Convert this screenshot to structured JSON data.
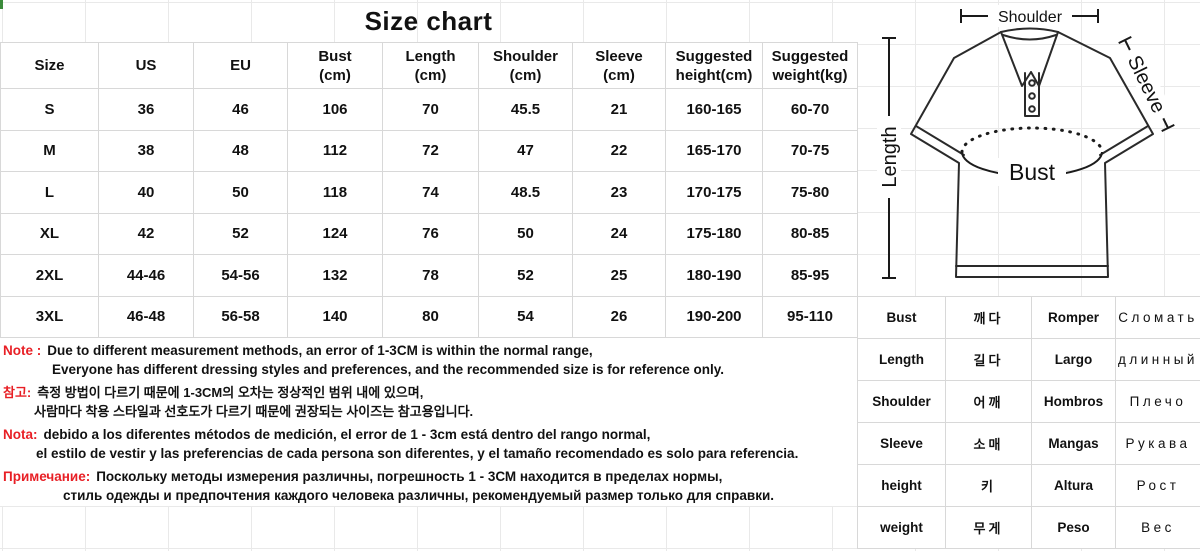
{
  "title": "Size chart",
  "corner_mark_color": "#3a8a3a",
  "size_table": {
    "headers": [
      {
        "label": "Size",
        "unit": ""
      },
      {
        "label": "US",
        "unit": ""
      },
      {
        "label": "EU",
        "unit": ""
      },
      {
        "label": "Bust",
        "unit": "(cm)"
      },
      {
        "label": "Length",
        "unit": "(cm)"
      },
      {
        "label": "Shoulder",
        "unit": "(cm)"
      },
      {
        "label": "Sleeve",
        "unit": "(cm)"
      },
      {
        "label": "Suggested",
        "unit": "height(cm)"
      },
      {
        "label": "Suggested",
        "unit": "weight(kg)"
      }
    ],
    "rows": [
      [
        "S",
        "36",
        "46",
        "106",
        "70",
        "45.5",
        "21",
        "160-165",
        "60-70"
      ],
      [
        "M",
        "38",
        "48",
        "112",
        "72",
        "47",
        "22",
        "165-170",
        "70-75"
      ],
      [
        "L",
        "40",
        "50",
        "118",
        "74",
        "48.5",
        "23",
        "170-175",
        "75-80"
      ],
      [
        "XL",
        "42",
        "52",
        "124",
        "76",
        "50",
        "24",
        "175-180",
        "80-85"
      ],
      [
        "2XL",
        "44-46",
        "54-56",
        "132",
        "78",
        "52",
        "25",
        "180-190",
        "85-95"
      ],
      [
        "3XL",
        "46-48",
        "56-58",
        "140",
        "80",
        "54",
        "26",
        "190-200",
        "95-110"
      ]
    ]
  },
  "notes": [
    {
      "label": "Note :",
      "line1": "Due to different measurement methods, an error of 1-3CM is within the normal range,",
      "line2": "Everyone has different dressing styles and  preferences, and the recommended size is for reference only."
    },
    {
      "label": "참고:",
      "line1": "측정 방법이 다르기 때문에 1-3CM의 오차는 정상적인 범위 내에 있으며,",
      "line2": "사람마다 착용 스타일과 선호도가 다르기 때문에 권장되는 사이즈는 참고용입니다."
    },
    {
      "label": "Nota:",
      "line1": "debido a los diferentes métodos de medición, el error de 1 - 3cm está dentro del rango normal,",
      "line2": "el estilo de vestir y las preferencias de cada persona son diferentes, y el tamaño recomendado es solo para referencia."
    },
    {
      "label": "Примечание:",
      "line1": "Поскольку методы измерения различны, погрешность 1 - 3СМ находится в пределах нормы,",
      "line2": "стиль одежды и предпочтения каждого человека различны, рекомендуемый размер только для справки."
    }
  ],
  "diagram": {
    "shoulder": "Shoulder",
    "sleeve": "Sleeve",
    "length": "Length",
    "bust": "Bust"
  },
  "translation_table": {
    "rows": [
      {
        "en": "Bust",
        "ko": "깨다",
        "es": "Romper",
        "ru": "Сломать"
      },
      {
        "en": "Length",
        "ko": "길다",
        "es": "Largo",
        "ru": "длинный"
      },
      {
        "en": "Shoulder",
        "ko": "어깨",
        "es": "Hombros",
        "ru": "Плечо"
      },
      {
        "en": "Sleeve",
        "ko": "소매",
        "es": "Mangas",
        "ru": "Рукава"
      },
      {
        "en": "height",
        "ko": "키",
        "es": "Altura",
        "ru": "Рост"
      },
      {
        "en": "weight",
        "ko": "무게",
        "es": "Peso",
        "ru": "Вес"
      }
    ]
  },
  "colors": {
    "note_label": "#e81f25",
    "text": "#111111",
    "border": "#d8d8d8",
    "grid": "#e9e9e9"
  }
}
